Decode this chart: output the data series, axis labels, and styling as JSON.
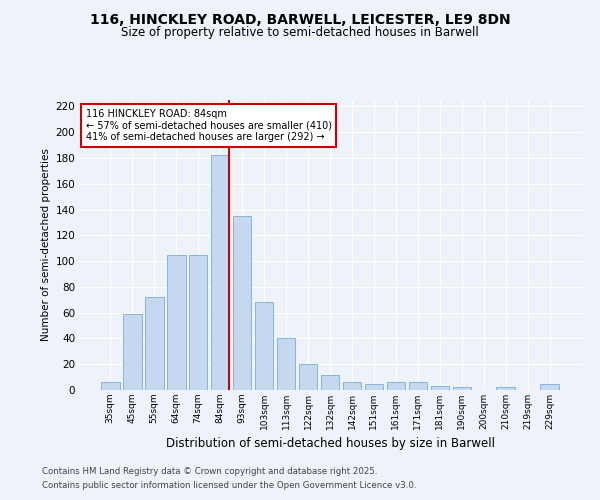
{
  "title": "116, HINCKLEY ROAD, BARWELL, LEICESTER, LE9 8DN",
  "subtitle": "Size of property relative to semi-detached houses in Barwell",
  "xlabel": "Distribution of semi-detached houses by size in Barwell",
  "ylabel": "Number of semi-detached properties",
  "categories": [
    "35sqm",
    "45sqm",
    "55sqm",
    "64sqm",
    "74sqm",
    "84sqm",
    "93sqm",
    "103sqm",
    "113sqm",
    "122sqm",
    "132sqm",
    "142sqm",
    "151sqm",
    "161sqm",
    "171sqm",
    "181sqm",
    "190sqm",
    "200sqm",
    "210sqm",
    "219sqm",
    "229sqm"
  ],
  "values": [
    6,
    59,
    72,
    105,
    105,
    182,
    135,
    68,
    40,
    20,
    12,
    6,
    5,
    6,
    6,
    3,
    2,
    0,
    2,
    0,
    5
  ],
  "bar_color": "#c5d8f0",
  "bar_edgecolor": "#7aadd4",
  "property_sqm": "84sqm",
  "property_label": "116 HINCKLEY ROAD: 84sqm",
  "pct_smaller": 57,
  "pct_smaller_count": 410,
  "pct_larger": 41,
  "pct_larger_count": 292,
  "vline_color": "#cc0000",
  "annotation_box_edgecolor": "#cc0000",
  "background_color": "#eef2f9",
  "grid_color": "#ffffff",
  "ylim": [
    0,
    225
  ],
  "yticks": [
    0,
    20,
    40,
    60,
    80,
    100,
    120,
    140,
    160,
    180,
    200,
    220
  ],
  "footer1": "Contains HM Land Registry data © Crown copyright and database right 2025.",
  "footer2": "Contains public sector information licensed under the Open Government Licence v3.0."
}
